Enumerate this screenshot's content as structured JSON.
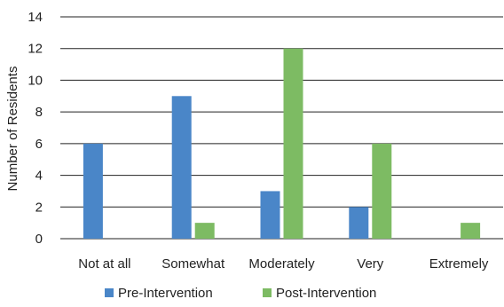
{
  "chart_data": {
    "type": "bar",
    "title": "",
    "xlabel": "",
    "ylabel": "Number of Residents",
    "categories": [
      "Not at all",
      "Somewhat",
      "Moderately",
      "Very",
      "Extremely"
    ],
    "series": [
      {
        "name": "Pre-Intervention",
        "color": "#4a86c8",
        "values": [
          6,
          9,
          3,
          2,
          0
        ]
      },
      {
        "name": "Post-Intervention",
        "color": "#7dbb63",
        "values": [
          0,
          1,
          12,
          6,
          1
        ]
      }
    ],
    "ylim": [
      0,
      14
    ],
    "yticks": [
      0,
      2,
      4,
      6,
      8,
      10,
      12,
      14
    ],
    "grid": true,
    "legend_position": "bottom"
  }
}
